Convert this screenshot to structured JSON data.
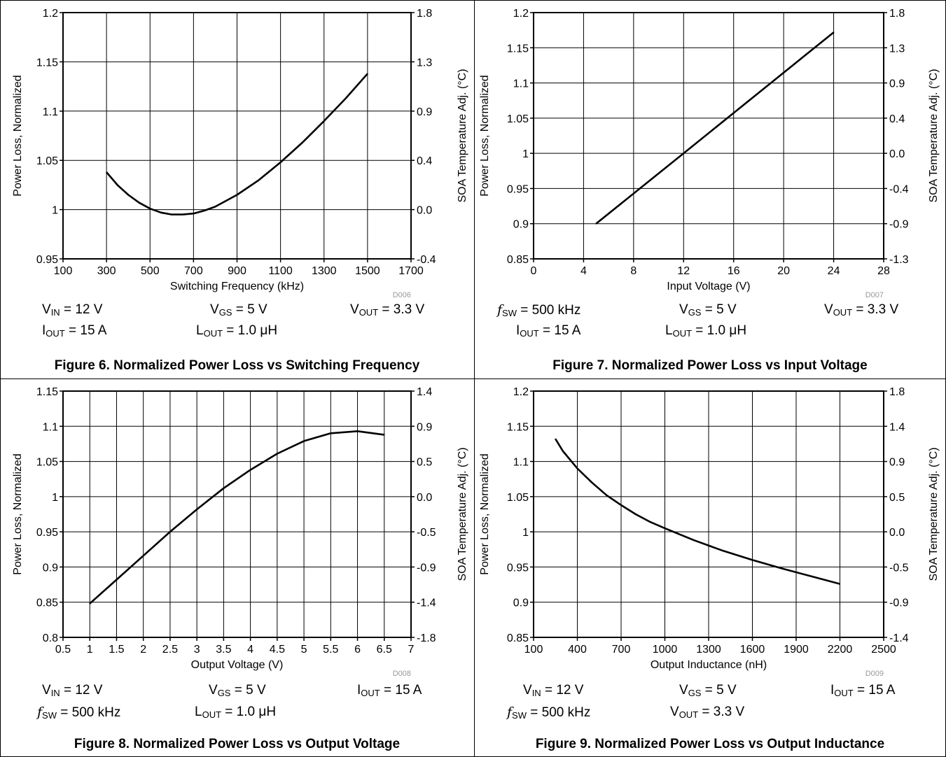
{
  "chart_data": [
    {
      "type": "line",
      "id": "fig6",
      "xlabel": "Switching Frequency (kHz)",
      "ylabel": "Power Loss, Normalized",
      "y2label": "SOA Temperature Adj. (°C)",
      "xlim": [
        100,
        1700
      ],
      "ylim": [
        0.95,
        1.2
      ],
      "xticks": [
        "100",
        "300",
        "500",
        "700",
        "900",
        "1100",
        "1300",
        "1500",
        "1700"
      ],
      "yticks": [
        "0.95",
        "1",
        "1.05",
        "1.1",
        "1.15",
        "1.2"
      ],
      "y2ticks": [
        "-0.4",
        "0.0",
        "0.4",
        "0.9",
        "1.3",
        "1.8"
      ],
      "grid": true,
      "code": "D006",
      "series": [
        {
          "x": [
            300,
            350,
            400,
            450,
            500,
            550,
            600,
            650,
            700,
            750,
            800,
            900,
            1000,
            1100,
            1200,
            1300,
            1400,
            1500
          ],
          "y": [
            1.038,
            1.025,
            1.015,
            1.007,
            1.001,
            0.997,
            0.995,
            0.995,
            0.996,
            0.999,
            1.003,
            1.015,
            1.03,
            1.048,
            1.068,
            1.09,
            1.113,
            1.138
          ]
        }
      ],
      "conditions": {
        "row1": [
          {
            "main": "V",
            "sub": "IN",
            "rest": " = 12 V"
          },
          {
            "main": "V",
            "sub": "GS",
            "rest": " = 5 V"
          },
          {
            "main": "V",
            "sub": "OUT",
            "rest": " = 3.3 V"
          }
        ],
        "row2": [
          {
            "main": "I",
            "sub": "OUT",
            "rest": " = 15 A"
          },
          {
            "main": "L",
            "sub": "OUT",
            "rest": " = 1.0 μH"
          }
        ]
      },
      "caption": "Figure 6. Normalized Power Loss vs Switching Frequency"
    },
    {
      "type": "line",
      "id": "fig7",
      "xlabel": "Input Voltage (V)",
      "ylabel": "Power Loss, Normalized",
      "y2label": "SOA Temperature Adj. (°C)",
      "xlim": [
        0,
        28
      ],
      "ylim": [
        0.85,
        1.2
      ],
      "xticks": [
        "0",
        "4",
        "8",
        "12",
        "16",
        "20",
        "24",
        "28"
      ],
      "yticks": [
        "0.85",
        "0.9",
        "0.95",
        "1",
        "1.05",
        "1.1",
        "1.15",
        "1.2"
      ],
      "y2ticks": [
        "-1.3",
        "-0.9",
        "-0.4",
        "0.0",
        "0.4",
        "0.9",
        "1.3",
        "1.8"
      ],
      "grid": true,
      "code": "D007",
      "series": [
        {
          "x": [
            5,
            12,
            24
          ],
          "y": [
            0.9,
            1.0,
            1.172
          ]
        }
      ],
      "conditions": {
        "row1": [
          {
            "fmain": "f",
            "sub": "SW",
            "rest": " = 500 kHz"
          },
          {
            "main": "V",
            "sub": "GS",
            "rest": " = 5 V"
          },
          {
            "main": "V",
            "sub": "OUT",
            "rest": " = 3.3 V"
          }
        ],
        "row2": [
          {
            "main": "I",
            "sub": "OUT",
            "rest": " = 15 A"
          },
          {
            "main": "L",
            "sub": "OUT",
            "rest": " = 1.0 μH"
          }
        ]
      },
      "caption": "Figure 7. Normalized Power Loss vs Input Voltage"
    },
    {
      "type": "line",
      "id": "fig8",
      "xlabel": "Output Voltage (V)",
      "ylabel": "Power Loss, Normalized",
      "y2label": "SOA Temperature Adj. (°C)",
      "xlim": [
        0.5,
        7
      ],
      "ylim": [
        0.8,
        1.15
      ],
      "xticks": [
        "0.5",
        "1",
        "1.5",
        "2",
        "2.5",
        "3",
        "3.5",
        "4",
        "4.5",
        "5",
        "5.5",
        "6",
        "6.5",
        "7"
      ],
      "yticks": [
        "0.8",
        "0.85",
        "0.9",
        "0.95",
        "1",
        "1.05",
        "1.1",
        "1.15"
      ],
      "y2ticks": [
        "-1.8",
        "-1.4",
        "-0.9",
        "-0.5",
        "0.0",
        "0.5",
        "0.9",
        "1.4"
      ],
      "grid": true,
      "code": "D008",
      "series": [
        {
          "x": [
            1,
            1.5,
            2,
            2.5,
            3,
            3.5,
            4,
            4.5,
            5,
            5.5,
            6,
            6.5
          ],
          "y": [
            0.848,
            0.882,
            0.916,
            0.95,
            0.982,
            1.012,
            1.038,
            1.061,
            1.079,
            1.09,
            1.093,
            1.088
          ]
        }
      ],
      "conditions": {
        "row1": [
          {
            "main": "V",
            "sub": "IN",
            "rest": " = 12 V"
          },
          {
            "main": "V",
            "sub": "GS",
            "rest": " = 5 V"
          },
          {
            "main": "I",
            "sub": "OUT",
            "rest": " = 15 A"
          }
        ],
        "row2": [
          {
            "fmain": "f",
            "sub": "SW",
            "rest": " = 500 kHz"
          },
          {
            "main": "L",
            "sub": "OUT",
            "rest": " = 1.0 μH"
          }
        ]
      },
      "caption": "Figure 8. Normalized Power Loss vs Output Voltage"
    },
    {
      "type": "line",
      "id": "fig9",
      "xlabel": "Output Inductance (nH)",
      "ylabel": "Power Loss, Normalized",
      "y2label": "SOA Temperature Adj. (°C)",
      "xlim": [
        100,
        2500
      ],
      "ylim": [
        0.85,
        1.2
      ],
      "xticks": [
        "100",
        "400",
        "700",
        "1000",
        "1300",
        "1600",
        "1900",
        "2200",
        "2500"
      ],
      "yticks": [
        "0.85",
        "0.9",
        "0.95",
        "1",
        "1.05",
        "1.1",
        "1.15",
        "1.2"
      ],
      "y2ticks": [
        "-1.4",
        "-0.9",
        "-0.5",
        "0.0",
        "0.5",
        "0.9",
        "1.4",
        "1.8"
      ],
      "grid": true,
      "code": "D009",
      "series": [
        {
          "x": [
            250,
            300,
            400,
            500,
            600,
            700,
            800,
            900,
            1000,
            1200,
            1400,
            1600,
            1800,
            2000,
            2200
          ],
          "y": [
            1.132,
            1.115,
            1.09,
            1.07,
            1.052,
            1.038,
            1.025,
            1.014,
            1.005,
            0.988,
            0.973,
            0.96,
            0.948,
            0.937,
            0.926
          ]
        }
      ],
      "conditions": {
        "row1": [
          {
            "main": "V",
            "sub": "IN",
            "rest": " = 12 V"
          },
          {
            "main": "V",
            "sub": "GS",
            "rest": " = 5 V"
          },
          {
            "main": "I",
            "sub": "OUT",
            "rest": " = 15 A"
          }
        ],
        "row2": [
          {
            "fmain": "f",
            "sub": "SW",
            "rest": " = 500 kHz"
          },
          {
            "main": "V",
            "sub": "OUT",
            "rest": " = 3.3 V"
          }
        ]
      },
      "caption": "Figure 9. Normalized Power Loss vs Output Inductance"
    }
  ]
}
